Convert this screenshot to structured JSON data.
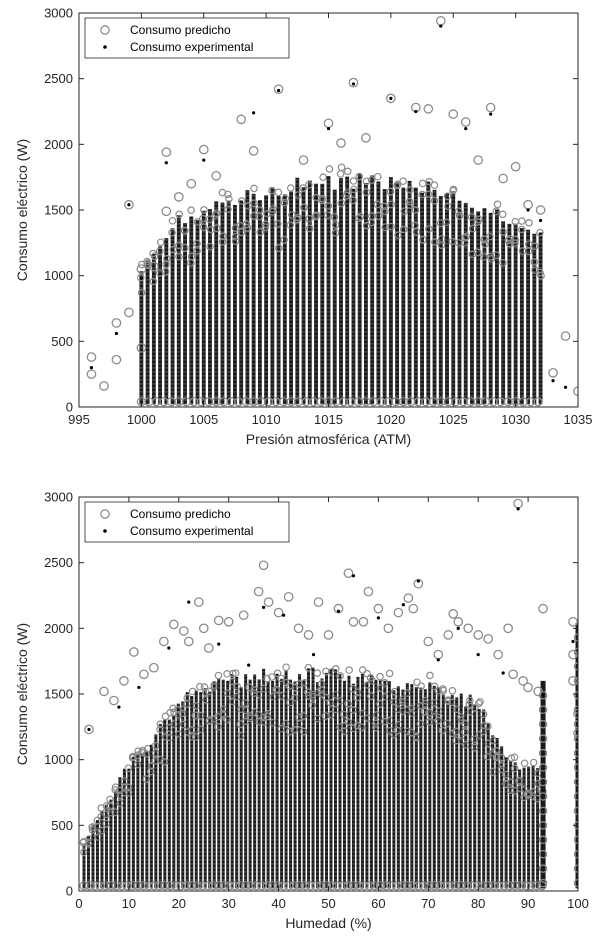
{
  "colors": {
    "predicted": "#8c8c8c",
    "experimental": "#000000",
    "axes": "#262626"
  },
  "chart_data": [
    {
      "type": "scatter",
      "xlabel": "Presión atmosférica (ATM)",
      "ylabel": "Consumo eléctrico (W)",
      "xlim": [
        995,
        1035
      ],
      "ylim": [
        0,
        3000
      ],
      "xticks": [
        995,
        1000,
        1005,
        1010,
        1015,
        1020,
        1025,
        1030,
        1035
      ],
      "yticks": [
        0,
        500,
        1000,
        1500,
        2000,
        2500,
        3000
      ],
      "legend": {
        "position": "top-left",
        "entries": [
          "Consumo predicho",
          "Consumo experimental"
        ]
      },
      "grid": false,
      "series": [
        {
          "name": "Consumo predicho",
          "marker": "open-circle",
          "x": [
            996,
            996,
            997,
            998,
            998,
            999,
            999,
            1000,
            1000,
            1001,
            1002,
            1002,
            1003,
            1004,
            1005,
            1006,
            1008,
            1009,
            1011,
            1013,
            1015,
            1016,
            1017,
            1018,
            1020,
            1022,
            1023,
            1024,
            1025,
            1026,
            1027,
            1028,
            1029,
            1030,
            1031,
            1032,
            1033,
            1034,
            1035
          ],
          "y": [
            380,
            250,
            160,
            640,
            360,
            1540,
            720,
            1050,
            450,
            1070,
            1940,
            1490,
            1600,
            1700,
            1960,
            1760,
            2190,
            1950,
            2420,
            1880,
            2160,
            2010,
            2470,
            2050,
            2350,
            2280,
            2270,
            2940,
            2230,
            2170,
            1880,
            2280,
            1740,
            1830,
            1540,
            1500,
            260,
            540,
            120
          ]
        },
        {
          "name": "Consumo experimental",
          "marker": "dot",
          "x": [
            996,
            998,
            999,
            1000,
            1002,
            1005,
            1009,
            1011,
            1015,
            1017,
            1020,
            1022,
            1024,
            1026,
            1028,
            1031,
            1032,
            1033,
            1034
          ],
          "y": [
            300,
            560,
            1540,
            980,
            1860,
            1880,
            2240,
            2410,
            2120,
            2460,
            2350,
            2250,
            2900,
            2120,
            2230,
            1500,
            1420,
            200,
            150
          ]
        }
      ],
      "density": {
        "x_from": 1000,
        "x_to": 1032,
        "x_step": 0.5,
        "y_min": 0,
        "y_max_by_x": [
          [
            1000,
            1060
          ],
          [
            1003,
            1480
          ],
          [
            1008,
            1640
          ],
          [
            1013,
            1760
          ],
          [
            1018,
            1790
          ],
          [
            1023,
            1750
          ],
          [
            1027,
            1600
          ],
          [
            1030,
            1420
          ],
          [
            1032,
            1400
          ]
        ]
      }
    },
    {
      "type": "scatter",
      "xlabel": "Humedad (%)",
      "ylabel": "Consumo eléctrico (W)",
      "xlim": [
        0,
        100
      ],
      "ylim": [
        0,
        3000
      ],
      "xticks": [
        0,
        10,
        20,
        30,
        40,
        50,
        60,
        70,
        80,
        90,
        100
      ],
      "yticks": [
        0,
        500,
        1000,
        1500,
        2000,
        2500,
        3000
      ],
      "legend": {
        "position": "top-left",
        "entries": [
          "Consumo predicho",
          "Consumo experimental"
        ]
      },
      "grid": false,
      "series": [
        {
          "name": "Consumo predicho",
          "marker": "open-circle",
          "x": [
            2,
            5,
            7,
            9,
            11,
            13,
            15,
            17,
            19,
            21,
            22,
            24,
            25,
            26,
            28,
            30,
            33,
            36,
            37,
            38,
            40,
            42,
            44,
            46,
            48,
            50,
            52,
            54,
            55,
            57,
            58,
            60,
            62,
            64,
            66,
            67,
            68,
            70,
            72,
            74,
            75,
            76,
            78,
            80,
            82,
            84,
            86,
            87,
            88,
            89,
            90,
            92,
            93,
            99,
            99,
            99,
            100,
            100
          ],
          "y": [
            1230,
            1520,
            1450,
            1600,
            1820,
            1650,
            1700,
            1900,
            2030,
            1980,
            1900,
            2200,
            2000,
            1850,
            2060,
            2050,
            2100,
            2280,
            2480,
            2200,
            2120,
            2240,
            2000,
            1950,
            2200,
            1950,
            2150,
            2420,
            2050,
            2050,
            2280,
            2150,
            2000,
            2120,
            2230,
            2150,
            2340,
            1900,
            1800,
            1950,
            2110,
            2050,
            2000,
            1950,
            1920,
            1800,
            2000,
            1650,
            2950,
            1600,
            1550,
            1520,
            2150,
            2050,
            1800,
            1600,
            1350,
            1200
          ]
        },
        {
          "name": "Consumo experimental",
          "marker": "dot",
          "x": [
            2,
            8,
            12,
            18,
            22,
            28,
            34,
            37,
            41,
            47,
            52,
            55,
            60,
            65,
            68,
            72,
            76,
            80,
            85,
            88,
            93,
            99
          ],
          "y": [
            1230,
            1400,
            1550,
            1850,
            2200,
            1880,
            1720,
            2160,
            2100,
            1800,
            2130,
            2400,
            2080,
            2180,
            2360,
            1760,
            2000,
            1800,
            1660,
            2910,
            1500,
            1900
          ]
        }
      ],
      "density": {
        "x_from": 1,
        "x_to": 93,
        "x_step": 0.9,
        "y_min": 0,
        "y_max_by_x": [
          [
            1,
            380
          ],
          [
            5,
            650
          ],
          [
            10,
            1000
          ],
          [
            15,
            1200
          ],
          [
            20,
            1500
          ],
          [
            30,
            1650
          ],
          [
            40,
            1720
          ],
          [
            50,
            1700
          ],
          [
            60,
            1650
          ],
          [
            70,
            1600
          ],
          [
            80,
            1480
          ],
          [
            86,
            1000
          ],
          [
            90,
            980
          ],
          [
            93,
            950
          ]
        ],
        "extra_columns": [
          {
            "x": 93,
            "y_max": 1600
          },
          {
            "x": 100,
            "y_max": 2040
          }
        ]
      }
    }
  ]
}
